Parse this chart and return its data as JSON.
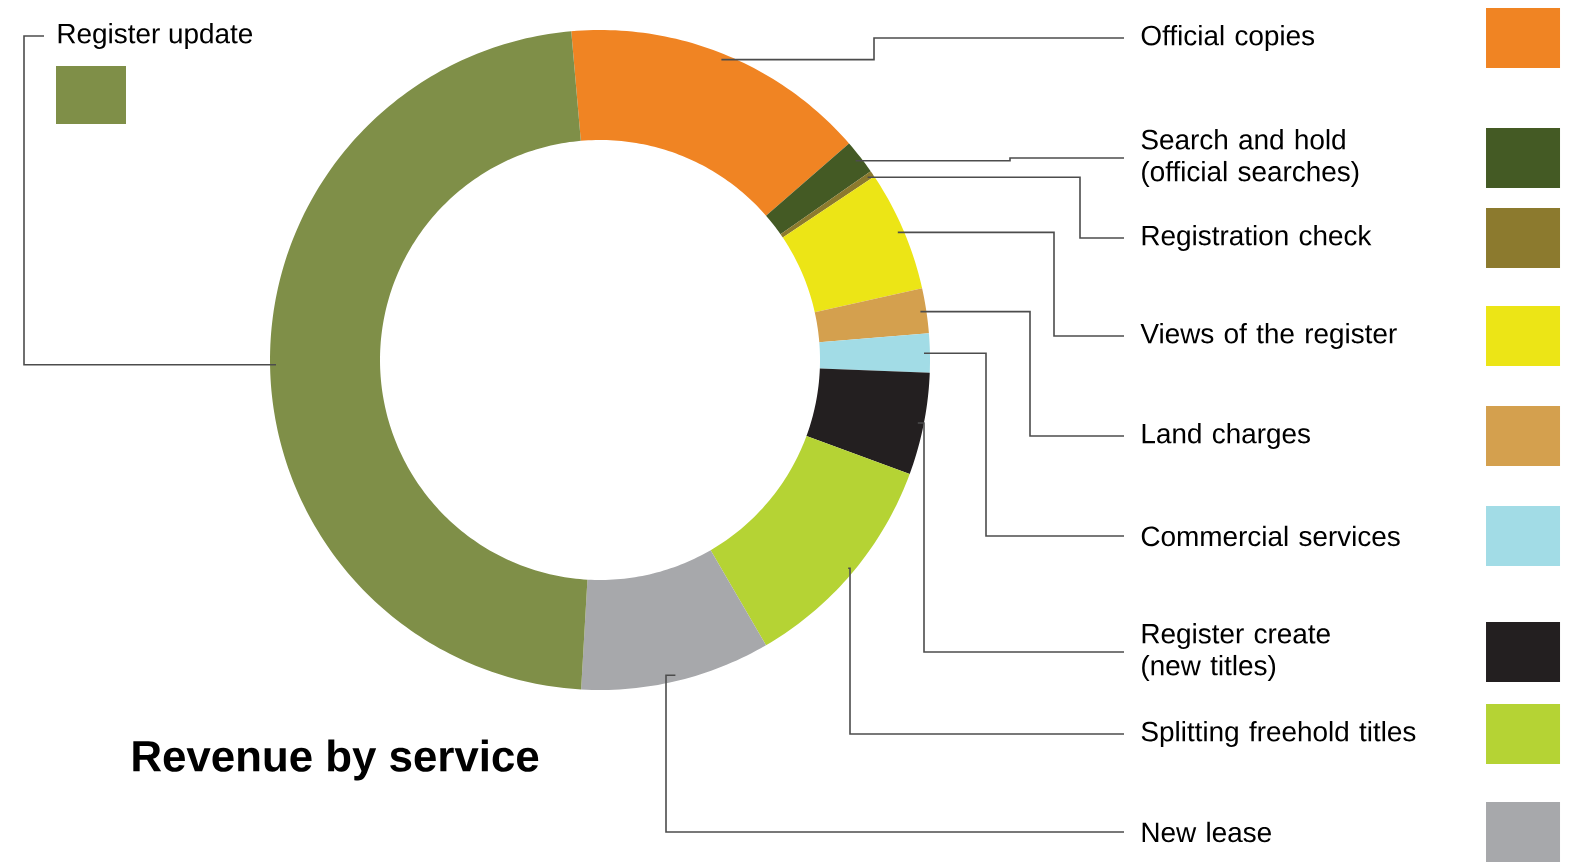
{
  "chart_data": {
    "type": "donut",
    "title": "Revenue by service",
    "categories": [
      "Official copies",
      "Search and hold (official searches)",
      "Registration check",
      "Views of the register",
      "Land charges",
      "Commercial services",
      "Register create (new titles)",
      "Splitting freehold titles",
      "New lease",
      "Register update"
    ],
    "values": [
      15,
      1.7,
      0.3,
      5.9,
      2.2,
      1.9,
      5,
      11,
      9.3,
      47.7
    ],
    "colors": [
      "#f08423",
      "#445a24",
      "#8c7a2e",
      "#ece516",
      "#d4a04e",
      "#a2dce6",
      "#231f20",
      "#b5d334",
      "#a7a8ab",
      "#7f8f48"
    ]
  }
}
